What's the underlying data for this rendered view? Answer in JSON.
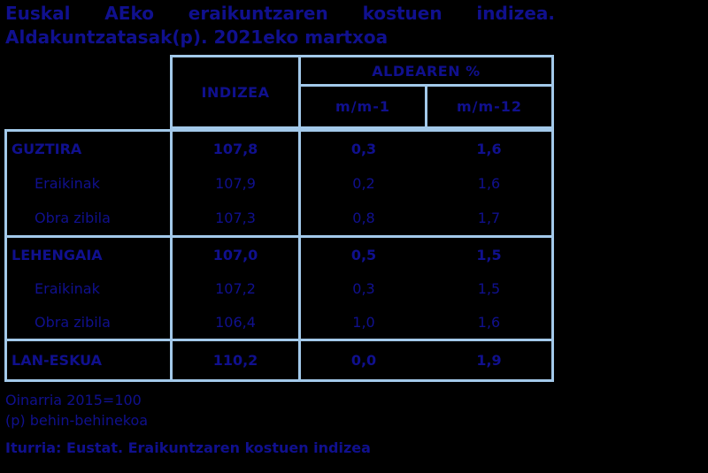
{
  "title": {
    "line1": "Euskal AEko eraikuntzaren kostuen indizea.",
    "line2": "Aldakuntzatasak(p). 2021eko martxoa"
  },
  "table": {
    "header": {
      "indizea": "INDIZEA",
      "group": "ALDEAREN %",
      "sub1": "m/m-1",
      "sub2": "m/m-12"
    },
    "groups": [
      {
        "rows": [
          {
            "label": "GUZTIRA",
            "indizea": "107,8",
            "mm1": "0,3",
            "mm12": "1,6"
          },
          {
            "label": "Eraikinak",
            "indizea": "107,9",
            "mm1": "0,2",
            "mm12": "1,6"
          },
          {
            "label": "Obra zibila",
            "indizea": "107,3",
            "mm1": "0,8",
            "mm12": "1,7"
          }
        ]
      },
      {
        "rows": [
          {
            "label": "LEHENGAIA",
            "indizea": "107,0",
            "mm1": "0,5",
            "mm12": "1,5"
          },
          {
            "label": "Eraikinak",
            "indizea": "107,2",
            "mm1": "0,3",
            "mm12": "1,5"
          },
          {
            "label": "Obra zibila",
            "indizea": "106,4",
            "mm1": "1,0",
            "mm12": "1,6"
          }
        ]
      },
      {
        "rows": [
          {
            "label": "LAN-ESKUA",
            "indizea": "110,2",
            "mm1": "0,0",
            "mm12": "1,9"
          }
        ]
      }
    ]
  },
  "footer": {
    "note1": "Oinarria 2015=100",
    "note2": "(p) behin-behinekoa",
    "source": "Iturria: Eustat. Eraikuntzaren kostuen indizea"
  },
  "colors": {
    "background": "#000000",
    "text": "#10108E",
    "border": "#A3C9EA"
  },
  "chart_data": {
    "type": "table",
    "title": "Euskal AEko eraikuntzaren kostuen indizea. Aldakuntzatasak(p). 2021eko martxoa",
    "columns": [
      "",
      "INDIZEA",
      "ALDEAREN % m/m-1",
      "ALDEAREN % m/m-12"
    ],
    "rows": [
      {
        "label": "GUZTIRA",
        "level": 0,
        "indizea": 107.8,
        "mm1": 0.3,
        "mm12": 1.6
      },
      {
        "label": "Eraikinak",
        "level": 1,
        "indizea": 107.9,
        "mm1": 0.2,
        "mm12": 1.6
      },
      {
        "label": "Obra zibila",
        "level": 1,
        "indizea": 107.3,
        "mm1": 0.8,
        "mm12": 1.7
      },
      {
        "label": "LEHENGAIA",
        "level": 0,
        "indizea": 107.0,
        "mm1": 0.5,
        "mm12": 1.5
      },
      {
        "label": "Eraikinak",
        "level": 1,
        "indizea": 107.2,
        "mm1": 0.3,
        "mm12": 1.5
      },
      {
        "label": "Obra zibila",
        "level": 1,
        "indizea": 106.4,
        "mm1": 1.0,
        "mm12": 1.6
      },
      {
        "label": "LAN-ESKUA",
        "level": 0,
        "indizea": 110.2,
        "mm1": 0.0,
        "mm12": 1.9
      }
    ],
    "notes": [
      "Oinarria 2015=100",
      "(p) behin-behinekoa"
    ],
    "source": "Iturria: Eustat. Eraikuntzaren kostuen indizea",
    "base": "2015=100"
  }
}
